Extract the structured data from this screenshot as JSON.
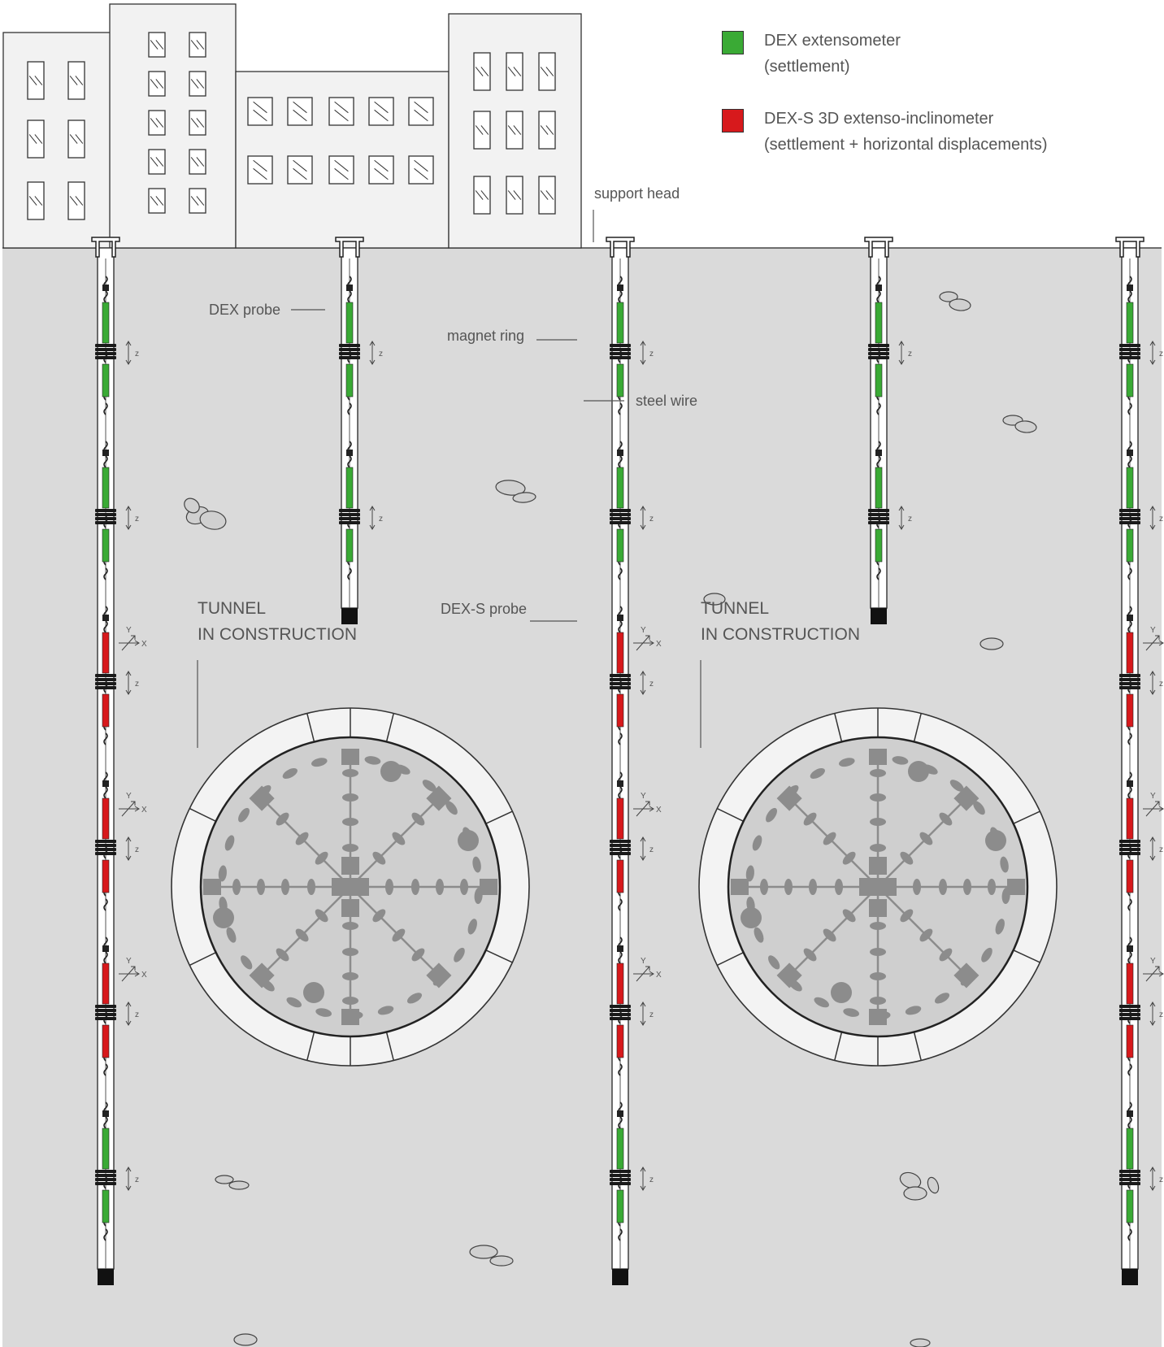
{
  "legend": {
    "items": [
      {
        "line1": "DEX extensometer",
        "line2": "(settlement)",
        "color": "#3aaa35"
      },
      {
        "line1": "DEX-S 3D extenso-inclinometer",
        "line2": "(settlement + horizontal displacements)",
        "color": "#d7191c"
      }
    ]
  },
  "callouts": {
    "support_head": "support head",
    "dex_probe": "DEX probe",
    "magnet_ring": "magnet ring",
    "steel_wire": "steel wire",
    "dexs_probe": "DEX-S probe"
  },
  "tunnels": [
    {
      "line1": "TUNNEL",
      "line2": "IN CONSTRUCTION"
    },
    {
      "line1": "TUNNEL",
      "line2": "IN CONSTRUCTION"
    }
  ],
  "axis_labels": {
    "z": "z",
    "x": "X",
    "y": "Y"
  },
  "boreholes": [
    {
      "segments": [
        "green",
        "green",
        "red",
        "red",
        "red",
        "green"
      ]
    },
    {
      "segments": [
        "green",
        "green"
      ]
    },
    {
      "segments": [
        "green",
        "green",
        "red",
        "red",
        "red",
        "green"
      ]
    },
    {
      "segments": [
        "green",
        "green"
      ]
    },
    {
      "segments": [
        "green",
        "green",
        "red",
        "red",
        "red",
        "green"
      ]
    }
  ],
  "colors": {
    "ground": "#dadada",
    "building_fill": "#f2f2f2",
    "dex_green": "#3aaa35",
    "dexs_red": "#d7191c",
    "tunnel_ring": "#f3f3f3",
    "tunnel_inner": "#cfcfcf",
    "machine_gray": "#8c8c8c"
  }
}
